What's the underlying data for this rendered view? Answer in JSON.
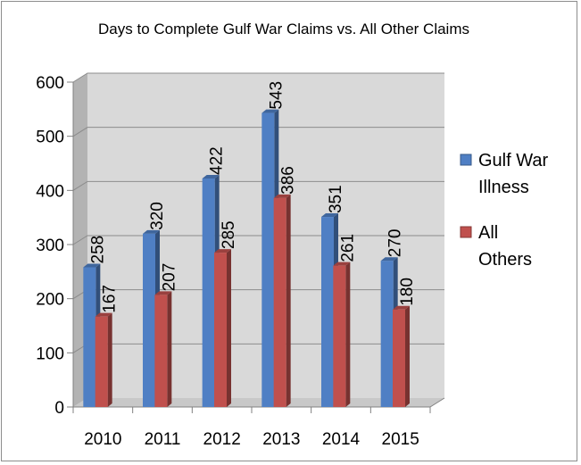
{
  "chart_data": {
    "type": "bar",
    "title": "Days to Complete Gulf War Claims vs. All Other Claims",
    "categories": [
      "2010",
      "2011",
      "2012",
      "2013",
      "2014",
      "2015"
    ],
    "series": [
      {
        "name": "Gulf War Illness",
        "legend_lines": [
          "Gulf War",
          "Illness"
        ],
        "values": [
          258,
          320,
          422,
          543,
          351,
          270
        ],
        "color": "#4f7fc4"
      },
      {
        "name": "All Others",
        "legend_lines": [
          "All",
          "Others"
        ],
        "values": [
          167,
          207,
          285,
          386,
          261,
          180
        ],
        "color": "#c0504d"
      }
    ],
    "ylim": [
      0,
      600
    ],
    "yticks": [
      0,
      100,
      200,
      300,
      400,
      500,
      600
    ],
    "grid": true,
    "legend_position": "right",
    "style": "3d-clustered-column"
  }
}
